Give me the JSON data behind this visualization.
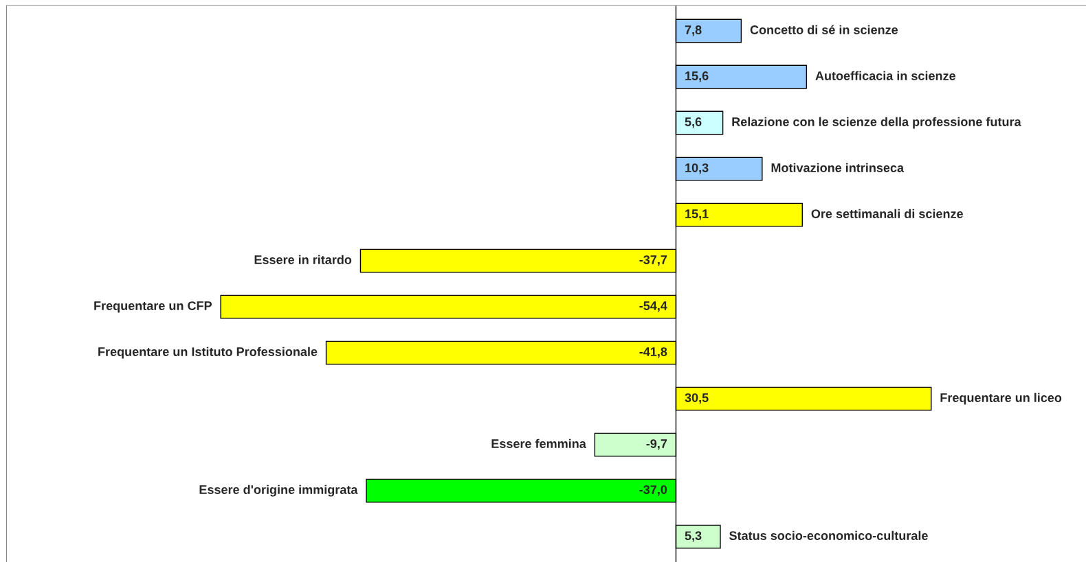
{
  "chart_data": {
    "type": "bar",
    "orientation": "horizontal",
    "categories": [
      "Concetto di sé in scienze",
      "Autoefficacia in scienze",
      "Relazione con le scienze della professione futura",
      "Motivazione intrinseca",
      "Ore settimanali di scienze",
      "Essere in ritardo",
      "Frequentare un CFP",
      "Frequentare un Istituto Professionale",
      "Frequentare un liceo",
      "Essere femmina",
      "Essere d'origine immigrata",
      "Status socio-economico-culturale"
    ],
    "values": [
      7.8,
      15.6,
      5.6,
      10.3,
      15.1,
      -37.7,
      -54.4,
      -41.8,
      30.5,
      -9.7,
      -37.0,
      5.3
    ],
    "value_labels": [
      "7,8",
      "15,6",
      "5,6",
      "10,3",
      "15,1",
      "-37,7",
      "-54,4",
      "-41,8",
      "30,5",
      "-9,7",
      "-37,0",
      "5,3"
    ],
    "colors": [
      "#99ccff",
      "#99ccff",
      "#ccffff",
      "#99ccff",
      "#ffff00",
      "#ffff00",
      "#ffff00",
      "#ffff00",
      "#ffff00",
      "#ccffcc",
      "#00ff00",
      "#ccffcc"
    ],
    "xlim": [
      -80,
      49
    ]
  }
}
